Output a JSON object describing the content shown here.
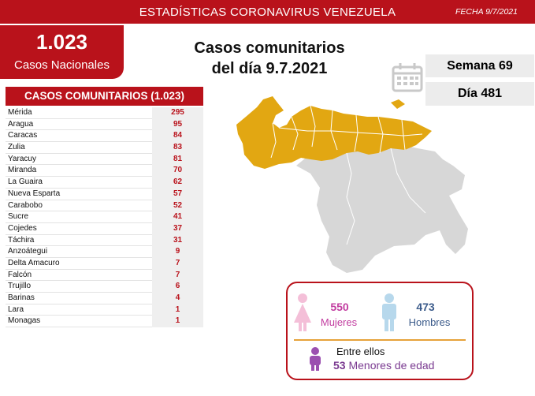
{
  "header": {
    "title": "ESTADÍSTICAS CORONAVIRUS VENEZUELA",
    "date": "FECHA 9/7/2021"
  },
  "national": {
    "number": "1.023",
    "label": "Casos Nacionales"
  },
  "main_title": {
    "line1": "Casos comunitarios",
    "line2": "del día 9.7.2021"
  },
  "week": "Semana 69",
  "day": "Día 481",
  "table": {
    "header": "CASOS COMUNITARIOS (1.023)",
    "rows": [
      {
        "state": "Mérida",
        "value": "295"
      },
      {
        "state": "Aragua",
        "value": "95"
      },
      {
        "state": "Caracas",
        "value": "84"
      },
      {
        "state": "Zulia",
        "value": "83"
      },
      {
        "state": "Yaracuy",
        "value": "81"
      },
      {
        "state": "Miranda",
        "value": "70"
      },
      {
        "state": "La Guaira",
        "value": "62"
      },
      {
        "state": "Nueva Esparta",
        "value": "57"
      },
      {
        "state": "Carabobo",
        "value": "52"
      },
      {
        "state": "Sucre",
        "value": "41"
      },
      {
        "state": "Cojedes",
        "value": "37"
      },
      {
        "state": "Táchira",
        "value": "31"
      },
      {
        "state": "Anzoátegui",
        "value": "9"
      },
      {
        "state": "Delta Amacuro",
        "value": "7"
      },
      {
        "state": "Falcón",
        "value": "7"
      },
      {
        "state": "Trujillo",
        "value": "6"
      },
      {
        "state": "Barinas",
        "value": "4"
      },
      {
        "state": "Lara",
        "value": "1"
      },
      {
        "state": "Monagas",
        "value": "1"
      }
    ]
  },
  "gender": {
    "women_number": "550",
    "women_label": "Mujeres",
    "men_number": "473",
    "men_label": "Hombres",
    "minors_intro": "Entre ellos",
    "minors_number": "53",
    "minors_label": "Menores de edad"
  },
  "colors": {
    "brand_red": "#b9121b",
    "map_affected": "#e2a712",
    "map_unaffected": "#d7d7d7",
    "women": "#c23da0",
    "men": "#3a5a8a",
    "minors": "#7a3a90"
  },
  "icons": [
    "calendar-icon",
    "woman-icon",
    "man-icon",
    "child-icon"
  ]
}
